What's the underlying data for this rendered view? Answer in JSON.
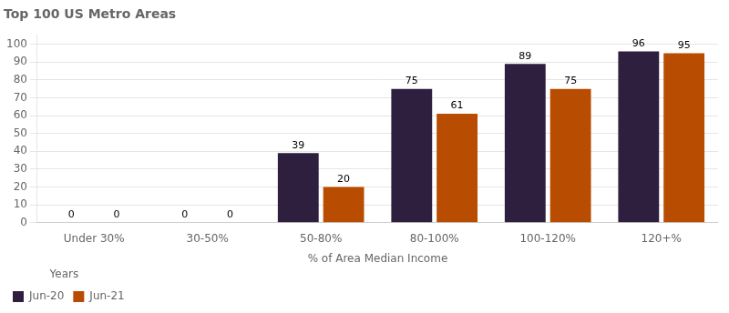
{
  "chart_data": {
    "type": "bar",
    "title": "Top 100 US Metro Areas",
    "x_label": "% of Area Median Income",
    "categories": [
      "Under 30%",
      "30-50%",
      "50-80%",
      "80-100%",
      "100-120%",
      "120+%"
    ],
    "series": [
      {
        "name": "Jun-20",
        "color": "#2d1f3d",
        "values": [
          0,
          0,
          39,
          75,
          89,
          96
        ]
      },
      {
        "name": "Jun-21",
        "color": "#b84c00",
        "values": [
          0,
          0,
          20,
          61,
          75,
          95
        ]
      }
    ],
    "ylim": [
      0,
      105
    ],
    "yticks": [
      0,
      10,
      20,
      30,
      40,
      50,
      60,
      70,
      80,
      90,
      100
    ],
    "grid": true,
    "legend": "bottom",
    "legend_title": "Years",
    "data_labels": true
  }
}
